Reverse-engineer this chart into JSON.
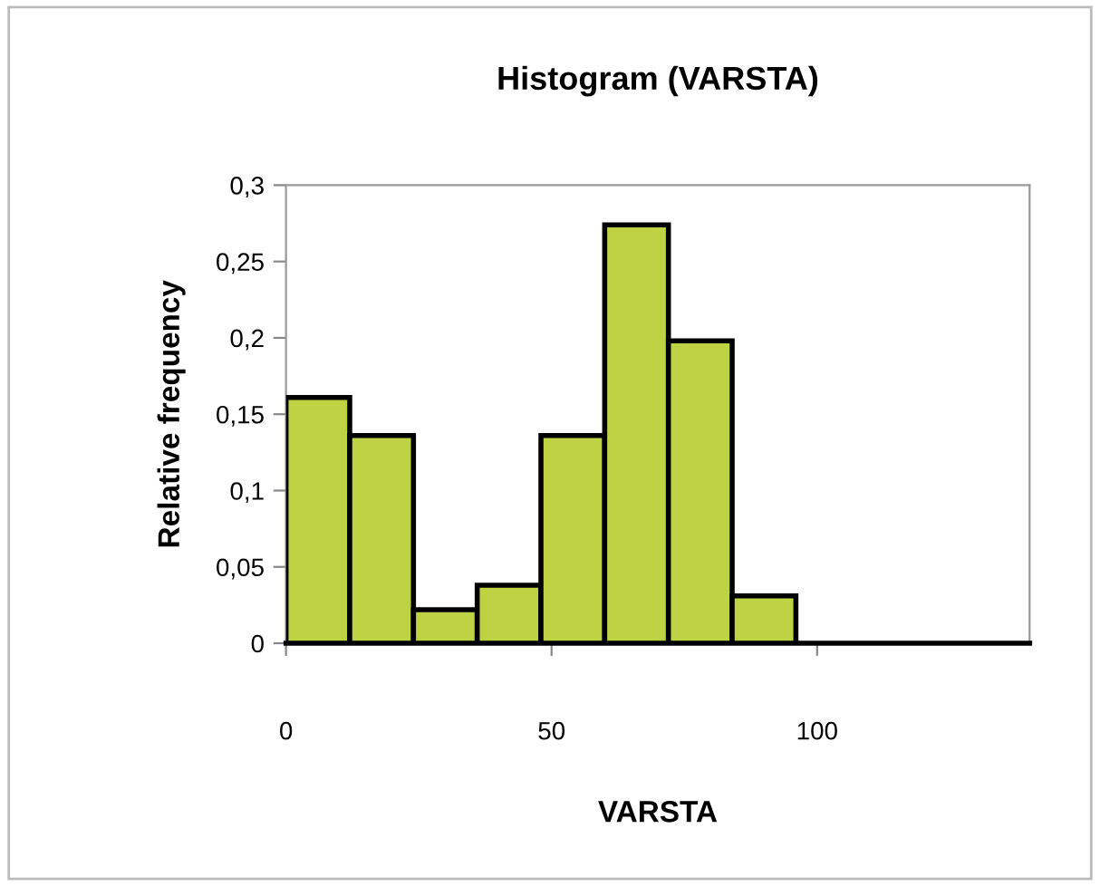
{
  "chart_data": {
    "type": "histogram",
    "title": "Histogram (VARSTA)",
    "xlabel": "VARSTA",
    "ylabel": "Relative frequency",
    "bins": [
      0,
      12,
      24,
      36,
      48,
      60,
      72,
      84,
      96
    ],
    "values": [
      0.161,
      0.136,
      0.022,
      0.038,
      0.136,
      0.274,
      0.198,
      0.031
    ],
    "color": "#bdd343",
    "xlim": [
      0,
      140
    ],
    "xticks": [
      0,
      50,
      100
    ],
    "ylim": [
      0,
      0.3
    ],
    "yticks": [
      0,
      {
        "value": 0.05,
        "label": "0,05"
      },
      {
        "value": 0.1,
        "label": "0,1"
      },
      {
        "value": 0.15,
        "label": "0,15"
      },
      {
        "value": 0.2,
        "label": "0,2"
      },
      {
        "value": 0.25,
        "label": "0,25"
      },
      {
        "value": 0.3,
        "label": "0,3"
      }
    ],
    "grid": false
  }
}
